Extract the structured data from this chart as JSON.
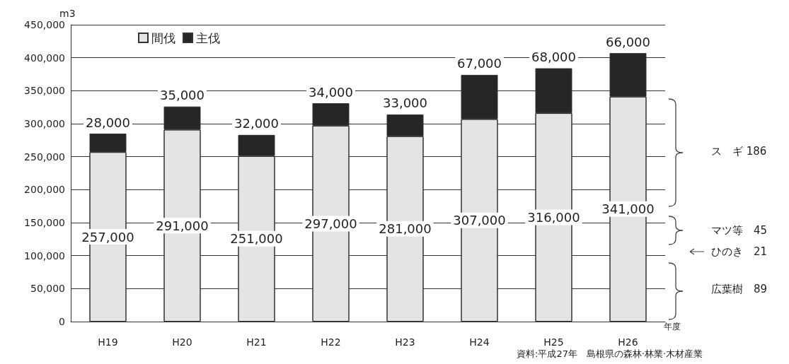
{
  "chart_data": {
    "type": "bar",
    "stacked": true,
    "xlabel": "年度",
    "ylabel": "m3",
    "categories": [
      "H19",
      "H20",
      "H21",
      "H22",
      "H23",
      "H24",
      "H25",
      "H26"
    ],
    "series": [
      {
        "name": "間伐",
        "color": "#e4e4e4",
        "values": [
          257000,
          291000,
          251000,
          297000,
          281000,
          307000,
          316000,
          341000
        ],
        "value_labels": [
          "257,000",
          "291,000",
          "251,000",
          "297,000",
          "281,000",
          "307,000",
          "316,000",
          "341,000"
        ]
      },
      {
        "name": "主伐",
        "color": "#262626",
        "values": [
          28000,
          35000,
          32000,
          34000,
          33000,
          67000,
          68000,
          66000
        ],
        "value_labels": [
          "28,000",
          "35,000",
          "32,000",
          "34,000",
          "33,000",
          "67,000",
          "68,000",
          "66,000"
        ]
      }
    ],
    "ylim": [
      0,
      450000
    ],
    "yticks": [
      {
        "value": 0,
        "label": "0"
      },
      {
        "value": 50000,
        "label": "50,000"
      },
      {
        "value": 100000,
        "label": "100,000"
      },
      {
        "value": 150000,
        "label": "150,000"
      },
      {
        "value": 200000,
        "label": "200,000"
      },
      {
        "value": 250000,
        "label": "250,000"
      },
      {
        "value": 300000,
        "label": "300,000"
      },
      {
        "value": 350000,
        "label": "350,000"
      },
      {
        "value": 400000,
        "label": "400,000"
      },
      {
        "value": 450000,
        "label": "450,000"
      }
    ],
    "grid": "y",
    "legend": "top left",
    "annotations": [
      "ス　ギ 186",
      "マツ等　45",
      "ひのき　21",
      "広葉樹　89",
      "資料:平成27年　島根県の森林·林業·木材産業"
    ]
  }
}
